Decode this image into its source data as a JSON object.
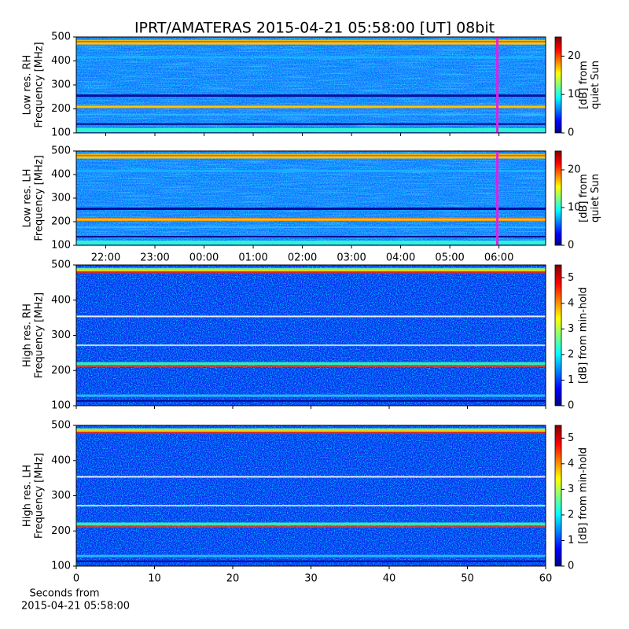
{
  "title": "IPRT/AMATERAS 2015-04-21 05:58:00 [UT]   08bit",
  "xlabel": [
    "Seconds from",
    "2015-04-21 05:58:00"
  ],
  "chart_data": [
    {
      "type": "heatmap",
      "ylabel": [
        "Low res. RH",
        "Frequency [MHz]"
      ],
      "ylim": [
        100,
        500
      ],
      "yticks": [
        100,
        200,
        300,
        400,
        500
      ],
      "xlim": [
        21.4,
        30.95
      ],
      "xticks": [
        22,
        23,
        24,
        25,
        26,
        27,
        28,
        29,
        30
      ],
      "cursor_x": 29.967,
      "cursor_color": "#e020e0",
      "colorbar_label": [
        "[dB] from",
        "quiet Sun"
      ],
      "clim": [
        0,
        25
      ],
      "cticks": [
        0,
        10,
        20
      ]
    },
    {
      "type": "heatmap",
      "ylabel": [
        "Low res. LH",
        "Frequency [MHz]"
      ],
      "ylim": [
        100,
        500
      ],
      "yticks": [
        100,
        200,
        300,
        400,
        500
      ],
      "xlim": [
        21.4,
        30.95
      ],
      "xticks": [
        {
          "value": 22,
          "label": "22:00"
        },
        {
          "value": 23,
          "label": "23:00"
        },
        {
          "value": 24,
          "label": "00:00"
        },
        {
          "value": 25,
          "label": "01:00"
        },
        {
          "value": 26,
          "label": "02:00"
        },
        {
          "value": 27,
          "label": "03:00"
        },
        {
          "value": 28,
          "label": "04:00"
        },
        {
          "value": 29,
          "label": "05:00"
        },
        {
          "value": 30,
          "label": "06:00"
        }
      ],
      "cursor_x": 29.967,
      "cursor_color": "#e020e0",
      "colorbar_label": [
        "[dB] from",
        "quiet Sun"
      ],
      "clim": [
        0,
        25
      ],
      "cticks": [
        0,
        10,
        20
      ]
    },
    {
      "type": "heatmap",
      "ylabel": [
        "High res. RH",
        "Frequency [MHz]"
      ],
      "ylim": [
        100,
        500
      ],
      "yticks": [
        100,
        200,
        300,
        400,
        500
      ],
      "xlim": [
        0,
        60
      ],
      "xticks": [
        0,
        10,
        20,
        30,
        40,
        50,
        60
      ],
      "colorbar_label": [
        "[dB] from min-hold"
      ],
      "clim": [
        0,
        5.5
      ],
      "cticks": [
        0,
        1,
        2,
        3,
        4,
        5
      ]
    },
    {
      "type": "heatmap",
      "ylabel": [
        "High res. LH",
        "Frequency [MHz]"
      ],
      "ylim": [
        100,
        500
      ],
      "yticks": [
        100,
        200,
        300,
        400,
        500
      ],
      "xlim": [
        0,
        60
      ],
      "xticks": [
        0,
        10,
        20,
        30,
        40,
        50,
        60
      ],
      "colorbar_label": [
        "[dB] from min-hold"
      ],
      "clim": [
        0,
        5.5
      ],
      "cticks": [
        0,
        1,
        2,
        3,
        4,
        5
      ]
    }
  ]
}
